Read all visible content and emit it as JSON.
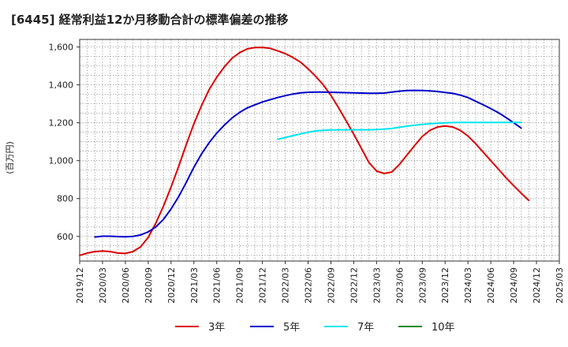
{
  "chart_data": {
    "type": "line",
    "title": "[6445]  経常利益12か月移動合計の標準偏差の推移",
    "ylabel": "(百万円)",
    "xlabel": "",
    "ylim": [
      470,
      1640
    ],
    "yticks": [
      600,
      800,
      1000,
      1200,
      1400,
      1600
    ],
    "ytick_labels": [
      "600",
      "800",
      "1,000",
      "1,200",
      "1,400",
      "1,600"
    ],
    "xlim": [
      "2019-12",
      "2025-03"
    ],
    "xtick_labels": [
      "2019/12",
      "2020/03",
      "2020/06",
      "2020/09",
      "2020/12",
      "2021/03",
      "2021/06",
      "2021/09",
      "2021/12",
      "2022/03",
      "2022/06",
      "2022/09",
      "2022/12",
      "2023/03",
      "2023/06",
      "2023/09",
      "2023/12",
      "2024/03",
      "2024/06",
      "2024/09",
      "2024/12",
      "2025/03"
    ],
    "grid": true,
    "legend_position": "bottom",
    "series": [
      {
        "name": "3年",
        "color": "#dd0000",
        "points": [
          [
            "2019-12",
            500
          ],
          [
            "2020-01",
            512
          ],
          [
            "2020-02",
            520
          ],
          [
            "2020-03",
            523
          ],
          [
            "2020-04",
            520
          ],
          [
            "2020-05",
            512
          ],
          [
            "2020-06",
            510
          ],
          [
            "2020-07",
            520
          ],
          [
            "2020-08",
            545
          ],
          [
            "2020-09",
            595
          ],
          [
            "2020-10",
            670
          ],
          [
            "2020-11",
            760
          ],
          [
            "2020-12",
            860
          ],
          [
            "2021-01",
            970
          ],
          [
            "2021-02",
            1085
          ],
          [
            "2021-03",
            1195
          ],
          [
            "2021-04",
            1290
          ],
          [
            "2021-05",
            1375
          ],
          [
            "2021-06",
            1440
          ],
          [
            "2021-07",
            1495
          ],
          [
            "2021-08",
            1540
          ],
          [
            "2021-09",
            1570
          ],
          [
            "2021-10",
            1590
          ],
          [
            "2021-11",
            1597
          ],
          [
            "2021-12",
            1598
          ],
          [
            "2022-01",
            1593
          ],
          [
            "2022-02",
            1580
          ],
          [
            "2022-03",
            1565
          ],
          [
            "2022-04",
            1545
          ],
          [
            "2022-05",
            1520
          ],
          [
            "2022-06",
            1485
          ],
          [
            "2022-07",
            1445
          ],
          [
            "2022-08",
            1400
          ],
          [
            "2022-09",
            1345
          ],
          [
            "2022-10",
            1280
          ],
          [
            "2022-11",
            1210
          ],
          [
            "2022-12",
            1140
          ],
          [
            "2023-01",
            1065
          ],
          [
            "2023-02",
            990
          ],
          [
            "2023-03",
            945
          ],
          [
            "2023-04",
            932
          ],
          [
            "2023-05",
            940
          ],
          [
            "2023-06",
            980
          ],
          [
            "2023-07",
            1030
          ],
          [
            "2023-08",
            1080
          ],
          [
            "2023-09",
            1128
          ],
          [
            "2023-10",
            1160
          ],
          [
            "2023-11",
            1178
          ],
          [
            "2023-12",
            1183
          ],
          [
            "2024-01",
            1178
          ],
          [
            "2024-02",
            1160
          ],
          [
            "2024-03",
            1130
          ],
          [
            "2024-04",
            1090
          ],
          [
            "2024-05",
            1045
          ],
          [
            "2024-06",
            1000
          ],
          [
            "2024-07",
            955
          ],
          [
            "2024-08",
            910
          ],
          [
            "2024-09",
            868
          ],
          [
            "2024-10",
            828
          ],
          [
            "2024-11",
            790
          ]
        ]
      },
      {
        "name": "5年",
        "color": "#0000cc",
        "points": [
          [
            "2020-02",
            597
          ],
          [
            "2020-03",
            601
          ],
          [
            "2020-04",
            601
          ],
          [
            "2020-05",
            599
          ],
          [
            "2020-06",
            598
          ],
          [
            "2020-07",
            600
          ],
          [
            "2020-08",
            608
          ],
          [
            "2020-09",
            624
          ],
          [
            "2020-10",
            650
          ],
          [
            "2020-11",
            690
          ],
          [
            "2020-12",
            745
          ],
          [
            "2021-01",
            810
          ],
          [
            "2021-02",
            885
          ],
          [
            "2021-03",
            965
          ],
          [
            "2021-04",
            1035
          ],
          [
            "2021-05",
            1095
          ],
          [
            "2021-06",
            1145
          ],
          [
            "2021-07",
            1188
          ],
          [
            "2021-08",
            1225
          ],
          [
            "2021-09",
            1255
          ],
          [
            "2021-10",
            1278
          ],
          [
            "2021-11",
            1295
          ],
          [
            "2021-12",
            1310
          ],
          [
            "2022-01",
            1322
          ],
          [
            "2022-02",
            1333
          ],
          [
            "2022-03",
            1343
          ],
          [
            "2022-04",
            1352
          ],
          [
            "2022-05",
            1358
          ],
          [
            "2022-06",
            1361
          ],
          [
            "2022-07",
            1362
          ],
          [
            "2022-08",
            1362
          ],
          [
            "2022-09",
            1361
          ],
          [
            "2022-10",
            1360
          ],
          [
            "2022-11",
            1359
          ],
          [
            "2022-12",
            1358
          ],
          [
            "2023-01",
            1357
          ],
          [
            "2023-02",
            1356
          ],
          [
            "2023-03",
            1356
          ],
          [
            "2023-04",
            1357
          ],
          [
            "2023-05",
            1362
          ],
          [
            "2023-06",
            1367
          ],
          [
            "2023-07",
            1370
          ],
          [
            "2023-08",
            1371
          ],
          [
            "2023-09",
            1370
          ],
          [
            "2023-10",
            1368
          ],
          [
            "2023-11",
            1365
          ],
          [
            "2023-12",
            1360
          ],
          [
            "2024-01",
            1355
          ],
          [
            "2024-02",
            1346
          ],
          [
            "2024-03",
            1333
          ],
          [
            "2024-04",
            1314
          ],
          [
            "2024-05",
            1295
          ],
          [
            "2024-06",
            1275
          ],
          [
            "2024-07",
            1253
          ],
          [
            "2024-08",
            1228
          ],
          [
            "2024-09",
            1200
          ],
          [
            "2024-10",
            1172
          ]
        ]
      },
      {
        "name": "7年",
        "color": "#00e5ee",
        "points": [
          [
            "2022-02",
            1113
          ],
          [
            "2022-03",
            1122
          ],
          [
            "2022-04",
            1132
          ],
          [
            "2022-05",
            1141
          ],
          [
            "2022-06",
            1150
          ],
          [
            "2022-07",
            1157
          ],
          [
            "2022-08",
            1160
          ],
          [
            "2022-09",
            1162
          ],
          [
            "2022-10",
            1163
          ],
          [
            "2022-11",
            1163
          ],
          [
            "2022-12",
            1163
          ],
          [
            "2023-01",
            1163
          ],
          [
            "2023-02",
            1163
          ],
          [
            "2023-03",
            1164
          ],
          [
            "2023-04",
            1166
          ],
          [
            "2023-05",
            1170
          ],
          [
            "2023-06",
            1176
          ],
          [
            "2023-07",
            1182
          ],
          [
            "2023-08",
            1187
          ],
          [
            "2023-09",
            1191
          ],
          [
            "2023-10",
            1195
          ],
          [
            "2023-11",
            1198
          ],
          [
            "2023-12",
            1200
          ],
          [
            "2024-01",
            1201
          ],
          [
            "2024-02",
            1202
          ],
          [
            "2024-03",
            1202
          ],
          [
            "2024-04",
            1202
          ],
          [
            "2024-05",
            1202
          ],
          [
            "2024-06",
            1202
          ],
          [
            "2024-07",
            1202
          ],
          [
            "2024-08",
            1202
          ],
          [
            "2024-09",
            1202
          ],
          [
            "2024-10",
            1202
          ]
        ]
      },
      {
        "name": "10年",
        "color": "#228b22",
        "points": []
      }
    ]
  }
}
